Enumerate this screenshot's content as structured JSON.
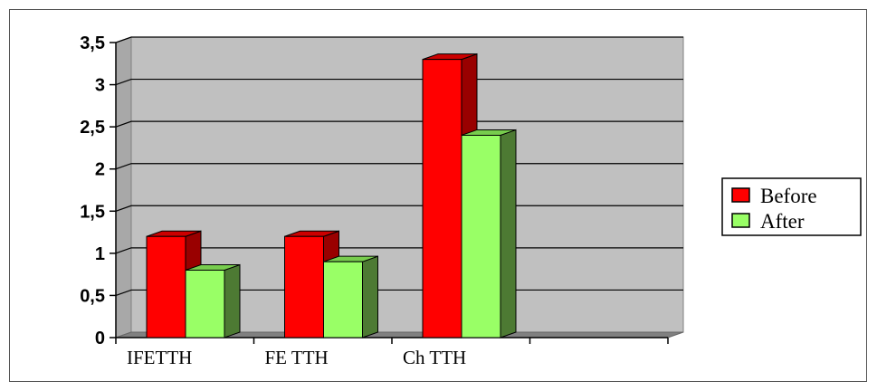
{
  "chart_data": {
    "type": "bar",
    "categories": [
      "IFETTH",
      "FE TTH",
      "Ch TTH",
      ""
    ],
    "series": [
      {
        "name": "Before",
        "values": [
          1.2,
          1.2,
          3.3,
          null
        ]
      },
      {
        "name": "After",
        "values": [
          0.8,
          0.9,
          2.4,
          null
        ]
      }
    ],
    "y_ticks": [
      "0",
      "0,5",
      "1",
      "1,5",
      "2",
      "2,5",
      "3",
      "3,5"
    ],
    "ylim": [
      0,
      3.5
    ],
    "title": "",
    "xlabel": "",
    "ylabel": "",
    "grid": true,
    "legend_position": "right",
    "style": "3d",
    "colors": {
      "before_front": "#ff0000",
      "before_side": "#990000",
      "before_top": "#cc0000",
      "after_front": "#99ff66",
      "after_side": "#4d7a33",
      "after_top": "#77cc4d",
      "plot_wall": "#c0c0c0",
      "plot_floor": "#808080"
    }
  }
}
